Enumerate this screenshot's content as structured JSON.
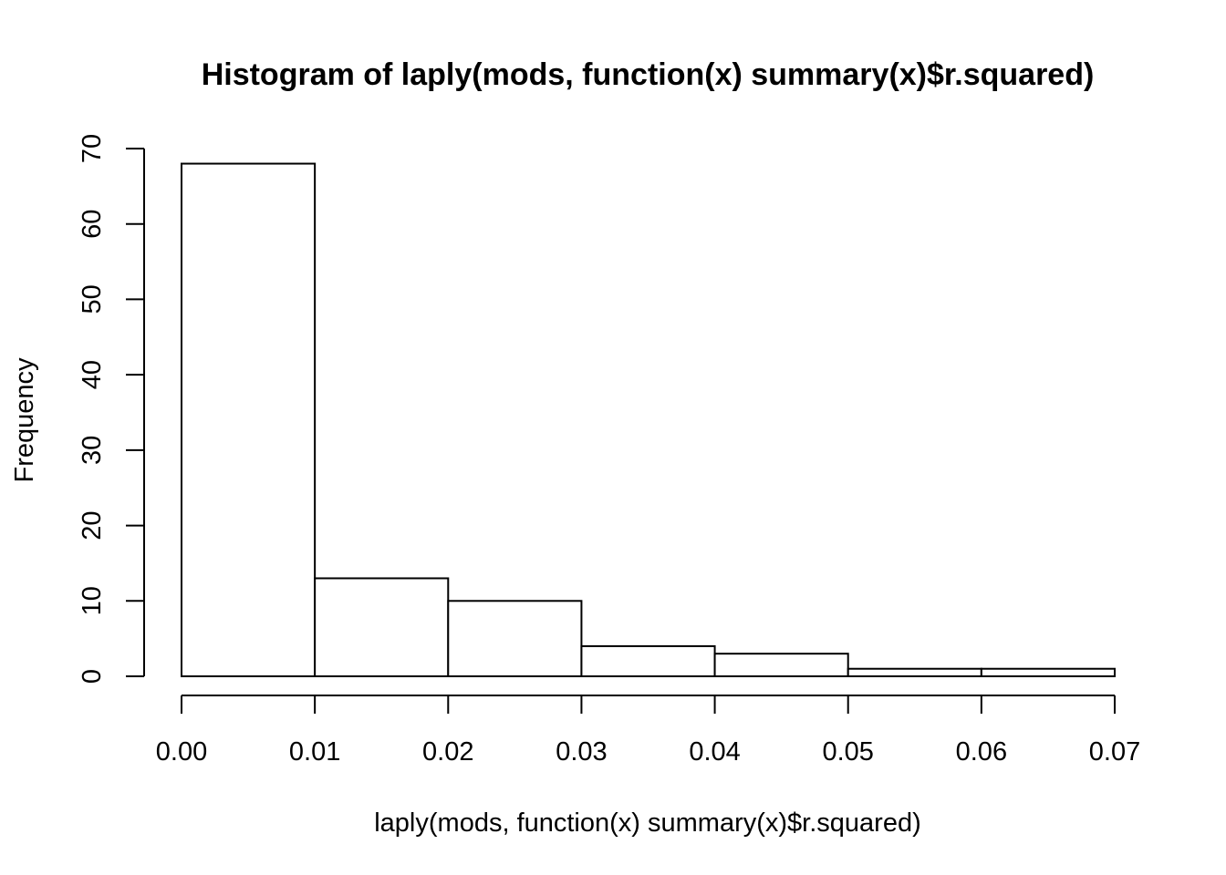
{
  "chart_data": {
    "type": "bar",
    "title": "Histogram of laply(mods, function(x) summary(x)$r.squared)",
    "xlabel": "laply(mods, function(x) summary(x)$r.squared)",
    "ylabel": "Frequency",
    "bins": [
      {
        "start": 0.0,
        "end": 0.01,
        "count": 68
      },
      {
        "start": 0.01,
        "end": 0.02,
        "count": 13
      },
      {
        "start": 0.02,
        "end": 0.03,
        "count": 10
      },
      {
        "start": 0.03,
        "end": 0.04,
        "count": 4
      },
      {
        "start": 0.04,
        "end": 0.05,
        "count": 3
      },
      {
        "start": 0.05,
        "end": 0.06,
        "count": 1
      },
      {
        "start": 0.06,
        "end": 0.07,
        "count": 1
      }
    ],
    "xlim": [
      0,
      0.07
    ],
    "ylim": [
      0,
      70
    ],
    "xticks": [
      "0.00",
      "0.01",
      "0.02",
      "0.03",
      "0.04",
      "0.05",
      "0.06",
      "0.07"
    ],
    "yticks": [
      "0",
      "10",
      "20",
      "30",
      "40",
      "50",
      "60",
      "70"
    ],
    "grid": false,
    "legend": "none"
  }
}
